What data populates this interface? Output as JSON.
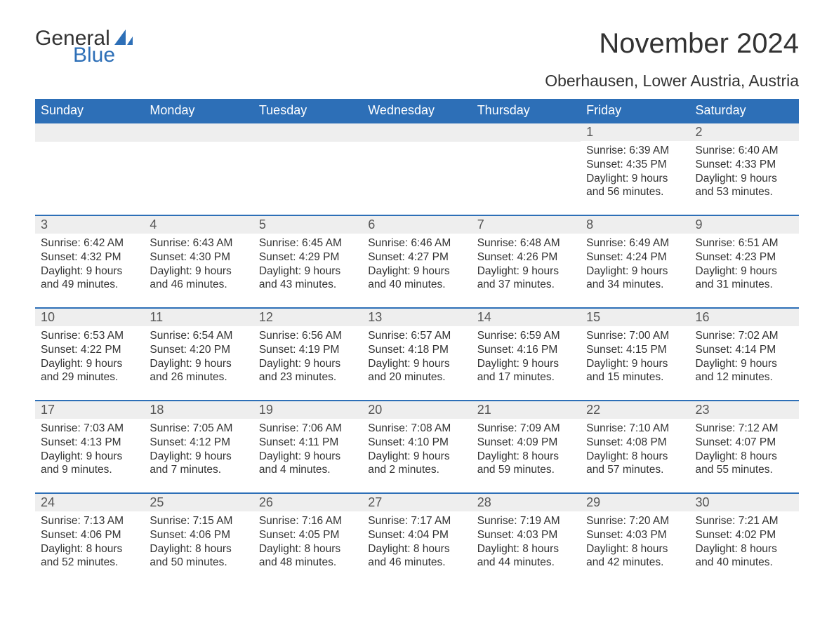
{
  "brand": {
    "word1": "General",
    "word2": "Blue",
    "logo_color": "#2d6fb7"
  },
  "title": "November 2024",
  "location": "Oberhausen, Lower Austria, Austria",
  "colors": {
    "header_bg": "#2d6fb7",
    "header_text": "#ffffff",
    "band_bg": "#eeeeee",
    "row_border": "#2d6fb7",
    "body_text": "#333333",
    "page_bg": "#ffffff"
  },
  "typography": {
    "title_fontsize": 40,
    "location_fontsize": 23,
    "weekday_fontsize": 18,
    "daynum_fontsize": 18,
    "body_fontsize": 15.5
  },
  "layout": {
    "columns": 7,
    "rows": 5,
    "leading_blanks": 5
  },
  "weekdays": [
    "Sunday",
    "Monday",
    "Tuesday",
    "Wednesday",
    "Thursday",
    "Friday",
    "Saturday"
  ],
  "days": [
    {
      "n": "1",
      "sunrise": "Sunrise: 6:39 AM",
      "sunset": "Sunset: 4:35 PM",
      "d1": "Daylight: 9 hours",
      "d2": "and 56 minutes."
    },
    {
      "n": "2",
      "sunrise": "Sunrise: 6:40 AM",
      "sunset": "Sunset: 4:33 PM",
      "d1": "Daylight: 9 hours",
      "d2": "and 53 minutes."
    },
    {
      "n": "3",
      "sunrise": "Sunrise: 6:42 AM",
      "sunset": "Sunset: 4:32 PM",
      "d1": "Daylight: 9 hours",
      "d2": "and 49 minutes."
    },
    {
      "n": "4",
      "sunrise": "Sunrise: 6:43 AM",
      "sunset": "Sunset: 4:30 PM",
      "d1": "Daylight: 9 hours",
      "d2": "and 46 minutes."
    },
    {
      "n": "5",
      "sunrise": "Sunrise: 6:45 AM",
      "sunset": "Sunset: 4:29 PM",
      "d1": "Daylight: 9 hours",
      "d2": "and 43 minutes."
    },
    {
      "n": "6",
      "sunrise": "Sunrise: 6:46 AM",
      "sunset": "Sunset: 4:27 PM",
      "d1": "Daylight: 9 hours",
      "d2": "and 40 minutes."
    },
    {
      "n": "7",
      "sunrise": "Sunrise: 6:48 AM",
      "sunset": "Sunset: 4:26 PM",
      "d1": "Daylight: 9 hours",
      "d2": "and 37 minutes."
    },
    {
      "n": "8",
      "sunrise": "Sunrise: 6:49 AM",
      "sunset": "Sunset: 4:24 PM",
      "d1": "Daylight: 9 hours",
      "d2": "and 34 minutes."
    },
    {
      "n": "9",
      "sunrise": "Sunrise: 6:51 AM",
      "sunset": "Sunset: 4:23 PM",
      "d1": "Daylight: 9 hours",
      "d2": "and 31 minutes."
    },
    {
      "n": "10",
      "sunrise": "Sunrise: 6:53 AM",
      "sunset": "Sunset: 4:22 PM",
      "d1": "Daylight: 9 hours",
      "d2": "and 29 minutes."
    },
    {
      "n": "11",
      "sunrise": "Sunrise: 6:54 AM",
      "sunset": "Sunset: 4:20 PM",
      "d1": "Daylight: 9 hours",
      "d2": "and 26 minutes."
    },
    {
      "n": "12",
      "sunrise": "Sunrise: 6:56 AM",
      "sunset": "Sunset: 4:19 PM",
      "d1": "Daylight: 9 hours",
      "d2": "and 23 minutes."
    },
    {
      "n": "13",
      "sunrise": "Sunrise: 6:57 AM",
      "sunset": "Sunset: 4:18 PM",
      "d1": "Daylight: 9 hours",
      "d2": "and 20 minutes."
    },
    {
      "n": "14",
      "sunrise": "Sunrise: 6:59 AM",
      "sunset": "Sunset: 4:16 PM",
      "d1": "Daylight: 9 hours",
      "d2": "and 17 minutes."
    },
    {
      "n": "15",
      "sunrise": "Sunrise: 7:00 AM",
      "sunset": "Sunset: 4:15 PM",
      "d1": "Daylight: 9 hours",
      "d2": "and 15 minutes."
    },
    {
      "n": "16",
      "sunrise": "Sunrise: 7:02 AM",
      "sunset": "Sunset: 4:14 PM",
      "d1": "Daylight: 9 hours",
      "d2": "and 12 minutes."
    },
    {
      "n": "17",
      "sunrise": "Sunrise: 7:03 AM",
      "sunset": "Sunset: 4:13 PM",
      "d1": "Daylight: 9 hours",
      "d2": "and 9 minutes."
    },
    {
      "n": "18",
      "sunrise": "Sunrise: 7:05 AM",
      "sunset": "Sunset: 4:12 PM",
      "d1": "Daylight: 9 hours",
      "d2": "and 7 minutes."
    },
    {
      "n": "19",
      "sunrise": "Sunrise: 7:06 AM",
      "sunset": "Sunset: 4:11 PM",
      "d1": "Daylight: 9 hours",
      "d2": "and 4 minutes."
    },
    {
      "n": "20",
      "sunrise": "Sunrise: 7:08 AM",
      "sunset": "Sunset: 4:10 PM",
      "d1": "Daylight: 9 hours",
      "d2": "and 2 minutes."
    },
    {
      "n": "21",
      "sunrise": "Sunrise: 7:09 AM",
      "sunset": "Sunset: 4:09 PM",
      "d1": "Daylight: 8 hours",
      "d2": "and 59 minutes."
    },
    {
      "n": "22",
      "sunrise": "Sunrise: 7:10 AM",
      "sunset": "Sunset: 4:08 PM",
      "d1": "Daylight: 8 hours",
      "d2": "and 57 minutes."
    },
    {
      "n": "23",
      "sunrise": "Sunrise: 7:12 AM",
      "sunset": "Sunset: 4:07 PM",
      "d1": "Daylight: 8 hours",
      "d2": "and 55 minutes."
    },
    {
      "n": "24",
      "sunrise": "Sunrise: 7:13 AM",
      "sunset": "Sunset: 4:06 PM",
      "d1": "Daylight: 8 hours",
      "d2": "and 52 minutes."
    },
    {
      "n": "25",
      "sunrise": "Sunrise: 7:15 AM",
      "sunset": "Sunset: 4:06 PM",
      "d1": "Daylight: 8 hours",
      "d2": "and 50 minutes."
    },
    {
      "n": "26",
      "sunrise": "Sunrise: 7:16 AM",
      "sunset": "Sunset: 4:05 PM",
      "d1": "Daylight: 8 hours",
      "d2": "and 48 minutes."
    },
    {
      "n": "27",
      "sunrise": "Sunrise: 7:17 AM",
      "sunset": "Sunset: 4:04 PM",
      "d1": "Daylight: 8 hours",
      "d2": "and 46 minutes."
    },
    {
      "n": "28",
      "sunrise": "Sunrise: 7:19 AM",
      "sunset": "Sunset: 4:03 PM",
      "d1": "Daylight: 8 hours",
      "d2": "and 44 minutes."
    },
    {
      "n": "29",
      "sunrise": "Sunrise: 7:20 AM",
      "sunset": "Sunset: 4:03 PM",
      "d1": "Daylight: 8 hours",
      "d2": "and 42 minutes."
    },
    {
      "n": "30",
      "sunrise": "Sunrise: 7:21 AM",
      "sunset": "Sunset: 4:02 PM",
      "d1": "Daylight: 8 hours",
      "d2": "and 40 minutes."
    }
  ]
}
